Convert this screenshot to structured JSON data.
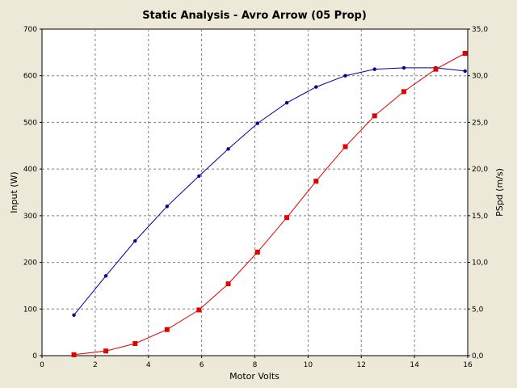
{
  "chart_data": {
    "type": "line",
    "title": "Static Analysis - Avro Arrow (05 Prop)",
    "xlabel": "Motor Volts",
    "ylabel": "Input (W)",
    "y2label": "PSpd (m/s)",
    "xlim": [
      0,
      16
    ],
    "ylim": [
      0,
      700
    ],
    "y2lim": [
      0,
      35
    ],
    "xticks": [
      "0",
      "2",
      "4",
      "6",
      "8",
      "10",
      "12",
      "14",
      "16"
    ],
    "xtick_values": [
      0,
      2,
      4,
      6,
      8,
      10,
      12,
      14,
      16
    ],
    "yticks": [
      "0",
      "100",
      "200",
      "300",
      "400",
      "500",
      "600",
      "700"
    ],
    "ytick_values": [
      0,
      100,
      200,
      300,
      400,
      500,
      600,
      700
    ],
    "y2ticks": [
      "0,0",
      "5,0",
      "10,0",
      "15,0",
      "20,0",
      "25,0",
      "30,0",
      "35,0"
    ],
    "y2tick_values": [
      0,
      5,
      10,
      15,
      20,
      25,
      30,
      35
    ],
    "grid": true,
    "x": [
      1.2,
      2.4,
      3.5,
      4.7,
      5.9,
      7.0,
      8.1,
      9.2,
      10.3,
      11.4,
      12.5,
      13.6,
      14.8,
      15.9
    ],
    "series": [
      {
        "axis": "left",
        "color": "#0000a0",
        "marker": "circle",
        "values": [
          87,
          171,
          246,
          320,
          385,
          443,
          498,
          542,
          576,
          600,
          614,
          617,
          617,
          610
        ]
      },
      {
        "axis": "right",
        "color": "#e00000",
        "marker": "square",
        "values": [
          0.1,
          0.5,
          1.3,
          2.8,
          4.9,
          7.7,
          11.1,
          14.8,
          18.7,
          22.4,
          25.7,
          28.3,
          30.7,
          32.4
        ]
      }
    ]
  }
}
